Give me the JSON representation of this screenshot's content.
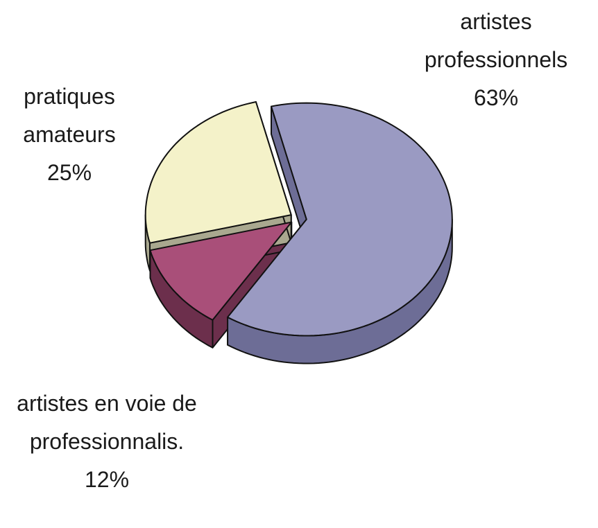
{
  "chart_data": {
    "type": "pie",
    "categories": [
      "artistes professionnels",
      "artistes en voie de professionnalis.",
      "pratiques amateurs"
    ],
    "values": [
      63,
      12,
      25
    ],
    "value_labels": [
      "63%",
      "12%",
      "25%"
    ],
    "colors": [
      "#9a9ac2",
      "#a94f79",
      "#f4f2c9"
    ],
    "side_colors": [
      "#6d6d96",
      "#6c2f4c",
      "#a9a88f"
    ]
  }
}
